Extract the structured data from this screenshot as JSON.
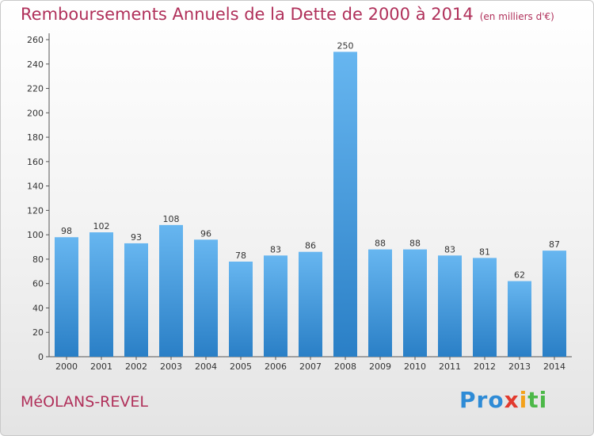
{
  "header": {
    "title": "Remboursements Annuels de la Dette de 2000 à 2014",
    "unit": "(en milliers d'€)"
  },
  "footer": {
    "commune": "MéOLANS-REVEL",
    "logo": "Proxiti"
  },
  "colors": {
    "title": "#b0305a",
    "bar_top": "#67b6f0",
    "bar_bottom": "#2a7fc6"
  },
  "chart_data": {
    "type": "bar",
    "categories": [
      "2000",
      "2001",
      "2002",
      "2003",
      "2004",
      "2005",
      "2006",
      "2007",
      "2008",
      "2009",
      "2010",
      "2011",
      "2012",
      "2013",
      "2014"
    ],
    "values": [
      98,
      102,
      93,
      108,
      96,
      78,
      83,
      86,
      250,
      88,
      88,
      83,
      81,
      62,
      87
    ],
    "title": "Remboursements Annuels de la Dette de 2000 à 2014",
    "ylim": [
      0,
      260
    ],
    "yticks": [
      0,
      20,
      40,
      60,
      80,
      100,
      120,
      140,
      160,
      180,
      200,
      220,
      240,
      260
    ],
    "grid": false,
    "legend": "none"
  }
}
